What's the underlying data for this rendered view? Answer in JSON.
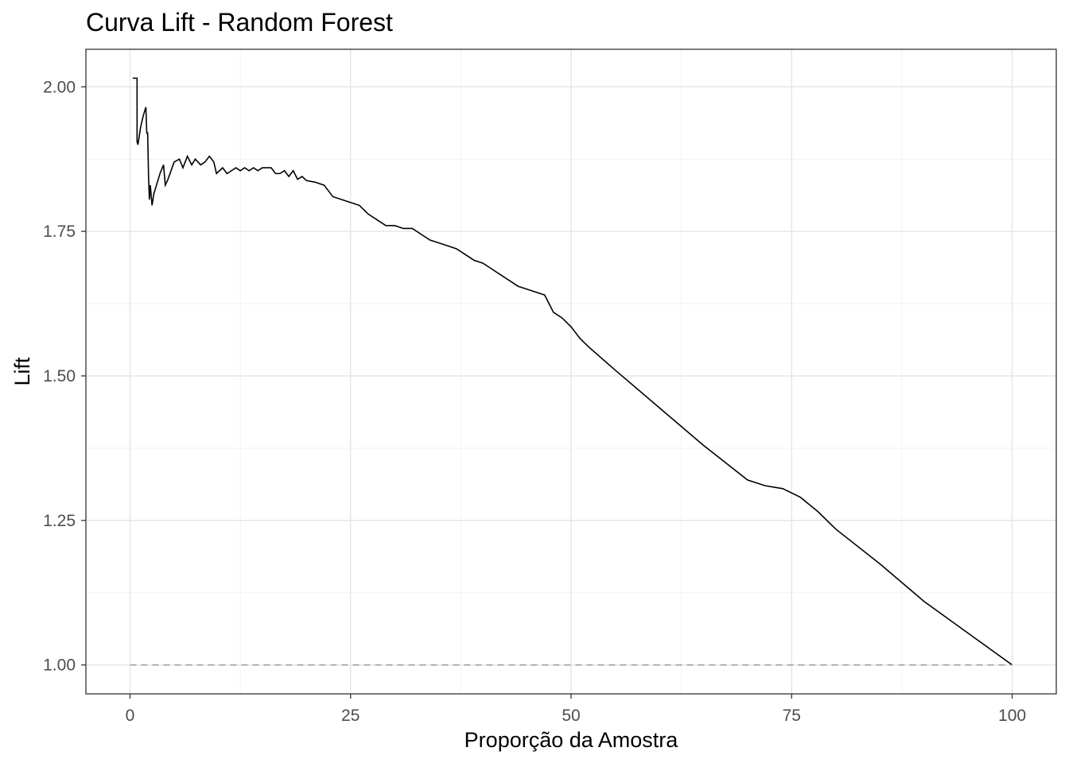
{
  "chart_data": {
    "type": "line",
    "title": "Curva Lift - Random Forest",
    "xlabel": "Proporção da Amostra",
    "ylabel": "Lift",
    "xlim": [
      -5,
      105
    ],
    "ylim": [
      0.95,
      2.065
    ],
    "x_ticks": [
      0,
      25,
      50,
      75,
      100
    ],
    "x_tick_labels": [
      "0",
      "25",
      "50",
      "75",
      "100"
    ],
    "y_ticks": [
      1.0,
      1.25,
      1.5,
      1.75,
      2.0
    ],
    "y_tick_labels": [
      "1.00",
      "1.25",
      "1.50",
      "1.75",
      "2.00"
    ],
    "grid": true,
    "series": [
      {
        "color": "#000000",
        "style": "solid",
        "x": [
          0.3,
          0.8,
          0.8,
          0.9,
          1.2,
          1.5,
          1.8,
          1.9,
          2.0,
          2.1,
          2.2,
          2.3,
          2.5,
          2.7,
          3.0,
          3.4,
          3.8,
          4.0,
          4.3,
          5.0,
          5.6,
          6.0,
          6.5,
          7.0,
          7.4,
          8.0,
          8.5,
          9.0,
          9.5,
          9.8,
          10.5,
          11.0,
          11.5,
          12.0,
          12.5,
          13.0,
          13.5,
          14.0,
          14.5,
          15.0,
          15.5,
          16.0,
          16.5,
          17.0,
          17.5,
          18.0,
          18.5,
          19.0,
          19.5,
          20.0,
          21.0,
          22.0,
          22.5,
          23.0,
          24.0,
          25.0,
          26.0,
          27.0,
          28.0,
          29.0,
          30.0,
          31.0,
          32.0,
          33.0,
          34.0,
          35.0,
          36.0,
          37.0,
          38.0,
          39.0,
          40.0,
          41.0,
          42.0,
          43.0,
          44.0,
          45.0,
          46.0,
          47.0,
          47.5,
          48.0,
          49.0,
          50.0,
          51.0,
          52.0,
          55.0,
          60.0,
          65.0,
          70.0,
          72.0,
          74.0,
          76.0,
          78.0,
          80.0,
          85.0,
          90.0,
          95.0,
          100.0
        ],
        "y": [
          2.015,
          2.015,
          1.905,
          1.9,
          1.93,
          1.95,
          1.965,
          1.92,
          1.92,
          1.845,
          1.805,
          1.83,
          1.795,
          1.815,
          1.83,
          1.85,
          1.865,
          1.83,
          1.84,
          1.87,
          1.875,
          1.86,
          1.88,
          1.865,
          1.875,
          1.865,
          1.87,
          1.88,
          1.87,
          1.85,
          1.86,
          1.85,
          1.855,
          1.86,
          1.855,
          1.86,
          1.855,
          1.86,
          1.855,
          1.86,
          1.86,
          1.86,
          1.85,
          1.85,
          1.855,
          1.845,
          1.855,
          1.84,
          1.845,
          1.838,
          1.835,
          1.83,
          1.82,
          1.81,
          1.805,
          1.8,
          1.795,
          1.78,
          1.77,
          1.76,
          1.76,
          1.755,
          1.755,
          1.745,
          1.735,
          1.73,
          1.725,
          1.72,
          1.71,
          1.7,
          1.695,
          1.685,
          1.675,
          1.665,
          1.655,
          1.65,
          1.645,
          1.64,
          1.625,
          1.61,
          1.6,
          1.585,
          1.565,
          1.55,
          1.51,
          1.445,
          1.38,
          1.32,
          1.31,
          1.305,
          1.29,
          1.265,
          1.235,
          1.175,
          1.11,
          1.055,
          1.0
        ]
      },
      {
        "color": "#999999",
        "style": "dashed",
        "x": [
          0,
          100
        ],
        "y": [
          1.0,
          1.0
        ]
      }
    ]
  }
}
